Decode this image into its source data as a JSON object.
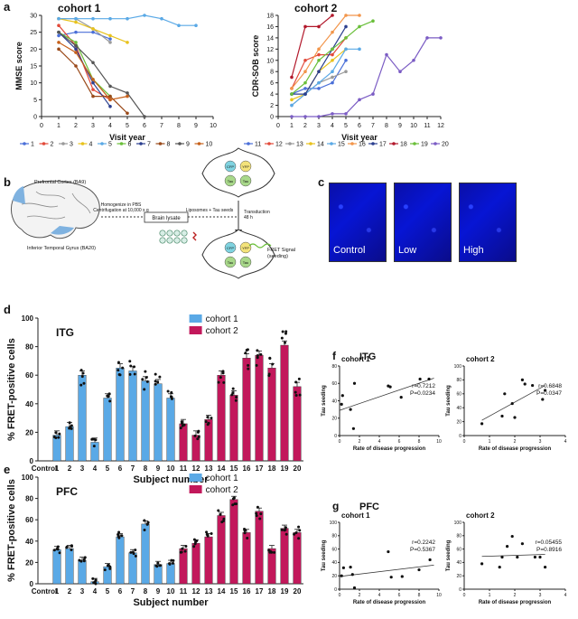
{
  "panel_a": {
    "label": "a",
    "cohort1": {
      "title": "cohort 1",
      "xlabel": "Visit year",
      "ylabel": "MMSE score",
      "xlim": [
        0,
        10
      ],
      "ylim": [
        0,
        30
      ],
      "xticks": [
        0,
        1,
        2,
        3,
        4,
        5,
        6,
        7,
        8,
        9,
        10
      ],
      "yticks": [
        0,
        5,
        10,
        15,
        20,
        25,
        30
      ],
      "series": [
        {
          "name": "1",
          "color": "#4a6fd8",
          "points": [
            [
              1,
              24
            ],
            [
              2,
              25
            ],
            [
              3,
              25
            ],
            [
              4,
              23
            ]
          ]
        },
        {
          "name": "2",
          "color": "#e24a3a",
          "points": [
            [
              1,
              27
            ],
            [
              2,
              21
            ],
            [
              3,
              8
            ],
            [
              4,
              5
            ]
          ]
        },
        {
          "name": "3",
          "color": "#9a9a9a",
          "points": [
            [
              1,
              29
            ],
            [
              2,
              29
            ],
            [
              3,
              26
            ],
            [
              4,
              22
            ]
          ]
        },
        {
          "name": "4",
          "color": "#e8c21c",
          "points": [
            [
              1,
              29
            ],
            [
              2,
              28
            ],
            [
              3,
              26
            ],
            [
              4,
              24
            ],
            [
              5,
              22
            ]
          ]
        },
        {
          "name": "5",
          "color": "#5aa9e6",
          "points": [
            [
              1,
              29
            ],
            [
              2,
              29
            ],
            [
              3,
              29
            ],
            [
              4,
              29
            ],
            [
              5,
              29
            ],
            [
              6,
              30
            ],
            [
              7,
              29
            ],
            [
              8,
              27
            ],
            [
              9,
              27
            ]
          ]
        },
        {
          "name": "6",
          "color": "#6abf3a",
          "points": [
            [
              1,
              25
            ],
            [
              2,
              22
            ],
            [
              3,
              11
            ],
            [
              4,
              6
            ]
          ]
        },
        {
          "name": "7",
          "color": "#2b3f8f",
          "points": [
            [
              1,
              25
            ],
            [
              2,
              20
            ],
            [
              3,
              10
            ],
            [
              4,
              3
            ]
          ]
        },
        {
          "name": "8",
          "color": "#9a4a1a",
          "points": [
            [
              1,
              20
            ],
            [
              2,
              15
            ],
            [
              3,
              6
            ],
            [
              4,
              6
            ],
            [
              5,
              1
            ]
          ]
        },
        {
          "name": "9",
          "color": "#555555",
          "points": [
            [
              1,
              25
            ],
            [
              2,
              21
            ],
            [
              3,
              16
            ],
            [
              4,
              9
            ],
            [
              5,
              7
            ],
            [
              6,
              0
            ]
          ]
        },
        {
          "name": "10",
          "color": "#c6601a",
          "points": [
            [
              1,
              22
            ],
            [
              2,
              19
            ],
            [
              3,
              11
            ],
            [
              4,
              5
            ],
            [
              5,
              6
            ]
          ]
        }
      ]
    },
    "cohort2": {
      "title": "cohort 2",
      "xlabel": "Visit year",
      "ylabel": "CDR-SOB score",
      "xlim": [
        0,
        12
      ],
      "ylim": [
        0,
        18
      ],
      "xticks": [
        0,
        1,
        2,
        3,
        4,
        5,
        6,
        7,
        8,
        9,
        10,
        11,
        12
      ],
      "yticks": [
        0,
        2,
        4,
        6,
        8,
        10,
        12,
        14,
        16,
        18
      ],
      "series": [
        {
          "name": "11",
          "color": "#4a6fd8",
          "points": [
            [
              1,
              4
            ],
            [
              2,
              5
            ],
            [
              3,
              5
            ],
            [
              4,
              6
            ],
            [
              5,
              10
            ]
          ]
        },
        {
          "name": "12",
          "color": "#e24a3a",
          "points": [
            [
              1,
              5
            ],
            [
              2,
              10
            ],
            [
              3,
              11
            ],
            [
              4,
              11
            ],
            [
              5,
              14
            ]
          ]
        },
        {
          "name": "13",
          "color": "#9a9a9a",
          "points": [
            [
              1,
              2
            ],
            [
              2,
              4
            ],
            [
              3,
              6
            ],
            [
              4,
              7
            ],
            [
              5,
              8
            ]
          ]
        },
        {
          "name": "14",
          "color": "#e8c21c",
          "points": [
            [
              1,
              3
            ],
            [
              2,
              4
            ],
            [
              3,
              8
            ],
            [
              4,
              10
            ],
            [
              5,
              12
            ]
          ]
        },
        {
          "name": "15",
          "color": "#5aa9e6",
          "points": [
            [
              1,
              2
            ],
            [
              2,
              4
            ],
            [
              3,
              6
            ],
            [
              4,
              8
            ],
            [
              5,
              12
            ],
            [
              6,
              12
            ]
          ]
        },
        {
          "name": "16",
          "color": "#f2954a",
          "points": [
            [
              1,
              5
            ],
            [
              2,
              8
            ],
            [
              3,
              12
            ],
            [
              4,
              15
            ],
            [
              5,
              18
            ],
            [
              6,
              18
            ]
          ]
        },
        {
          "name": "17",
          "color": "#2b3f8f",
          "points": [
            [
              1,
              4
            ],
            [
              2,
              4
            ],
            [
              3,
              8
            ],
            [
              4,
              12
            ],
            [
              5,
              16
            ]
          ]
        },
        {
          "name": "18",
          "color": "#b2182b",
          "points": [
            [
              1,
              7
            ],
            [
              2,
              16
            ],
            [
              3,
              16
            ],
            [
              4,
              18
            ]
          ]
        },
        {
          "name": "19",
          "color": "#6abf3a",
          "points": [
            [
              1,
              4
            ],
            [
              2,
              6
            ],
            [
              3,
              10
            ],
            [
              4,
              12
            ],
            [
              5,
              14
            ],
            [
              6,
              16
            ],
            [
              7,
              17
            ]
          ]
        },
        {
          "name": "20",
          "color": "#7b5cc4",
          "points": [
            [
              1,
              0
            ],
            [
              2,
              0
            ],
            [
              3,
              0
            ],
            [
              4,
              0.5
            ],
            [
              5,
              0.5
            ],
            [
              6,
              3
            ],
            [
              7,
              4
            ],
            [
              8,
              11
            ],
            [
              9,
              8
            ],
            [
              10,
              10
            ],
            [
              11,
              14
            ],
            [
              12,
              14
            ]
          ]
        }
      ]
    }
  },
  "panel_b": {
    "label": "b",
    "brain_labels": [
      "Prefrontal Cortex (BA9)",
      "Inferior Temporal Gyrus (BA20)"
    ],
    "step1": [
      "Homogenize in PBS",
      "Centrifugation at 10,000 x g"
    ],
    "lysate": "Brain lysate",
    "step2": "Liposomes + Tau seeds",
    "transduction": [
      "Transduction",
      "48 h"
    ],
    "fret": [
      "FRET Signal",
      "(seeding)"
    ],
    "cell_proteins": [
      "CFP",
      "YFP",
      "Tau",
      "Tau"
    ]
  },
  "panel_c": {
    "label": "c",
    "images": [
      "Control",
      "Low",
      "High"
    ]
  },
  "panel_d": {
    "label": "d",
    "region": "ITG",
    "ylabel": "% FRET-positive cells",
    "xlabel": "Subject number",
    "ylim": [
      0,
      100
    ],
    "yticks": [
      0,
      20,
      40,
      60,
      80,
      100
    ],
    "legend": [
      "cohort 1",
      "cohort 2"
    ],
    "categories": [
      "Control",
      "1",
      "2",
      "3",
      "4",
      "5",
      "6",
      "7",
      "8",
      "9",
      "10",
      "11",
      "12",
      "13",
      "14",
      "15",
      "16",
      "17",
      "18",
      "19",
      "20"
    ],
    "values": [
      0,
      18,
      24,
      60,
      13,
      44,
      65,
      63,
      56,
      54,
      44,
      26,
      18,
      29,
      60,
      46,
      72,
      74,
      65,
      81,
      52
    ],
    "cohort": [
      0,
      1,
      1,
      1,
      1,
      1,
      1,
      1,
      1,
      1,
      1,
      2,
      2,
      2,
      2,
      2,
      2,
      2,
      2,
      2,
      2
    ]
  },
  "panel_e": {
    "label": "e",
    "region": "PFC",
    "ylabel": "% FRET-positive cells",
    "xlabel": "Subject number",
    "ylim": [
      0,
      100
    ],
    "yticks": [
      0,
      20,
      40,
      60,
      80,
      100
    ],
    "legend": [
      "cohort 1",
      "cohort 2"
    ],
    "categories": [
      "Control",
      "1",
      "2",
      "3",
      "4",
      "5",
      "6",
      "7",
      "8",
      "9",
      "10",
      "11",
      "12",
      "13",
      "14",
      "15",
      "16",
      "17",
      "18",
      "19",
      "20"
    ],
    "values": [
      0,
      32,
      33,
      22,
      2,
      16,
      44,
      29,
      56,
      18,
      19,
      33,
      38,
      44,
      64,
      79,
      48,
      68,
      33,
      52,
      48
    ],
    "cohort": [
      0,
      1,
      1,
      1,
      1,
      1,
      1,
      1,
      1,
      1,
      1,
      2,
      2,
      2,
      2,
      2,
      2,
      2,
      2,
      2,
      2
    ]
  },
  "panel_f": {
    "label": "f",
    "region": "ITG",
    "plots": [
      {
        "title": "cohort 1",
        "xlabel": "Rate of disease progression",
        "ylabel": "Tau seeding",
        "xlim": [
          0,
          10
        ],
        "ylim": [
          0,
          80
        ],
        "xticks": [
          0,
          2,
          4,
          6,
          8,
          10
        ],
        "yticks": [
          0,
          20,
          40,
          60,
          80
        ],
        "stat": [
          "r=0.7212",
          "P=0.0234"
        ],
        "points": [
          [
            0.2,
            36
          ],
          [
            0.3,
            46
          ],
          [
            1.1,
            30
          ],
          [
            1.4,
            8
          ],
          [
            1.5,
            60
          ],
          [
            4.9,
            57
          ],
          [
            5.1,
            56
          ],
          [
            6.2,
            44
          ],
          [
            8.1,
            65
          ],
          [
            9.0,
            65
          ]
        ],
        "fit": [
          [
            0,
            29
          ],
          [
            9.5,
            66
          ]
        ]
      },
      {
        "title": "cohort 2",
        "xlabel": "Rate of disease progression",
        "ylabel": "Tau seeding",
        "xlim": [
          0,
          4
        ],
        "ylim": [
          0,
          100
        ],
        "xticks": [
          0,
          1,
          2,
          3,
          4
        ],
        "yticks": [
          0,
          20,
          40,
          60,
          80,
          100
        ],
        "stat": [
          "r=0.6848",
          "P=0.0347"
        ],
        "points": [
          [
            0.7,
            17
          ],
          [
            1.5,
            28
          ],
          [
            1.6,
            60
          ],
          [
            1.9,
            46
          ],
          [
            2.0,
            26
          ],
          [
            2.3,
            80
          ],
          [
            2.4,
            74
          ],
          [
            2.7,
            72
          ],
          [
            3.1,
            52
          ],
          [
            3.2,
            65
          ]
        ],
        "fit": [
          [
            0.7,
            22
          ],
          [
            3.2,
            72
          ]
        ]
      }
    ]
  },
  "panel_g": {
    "label": "g",
    "region": "PFC",
    "plots": [
      {
        "title": "cohort 1",
        "xlabel": "Rate of disease progression",
        "ylabel": "Tau seeding",
        "xlim": [
          0,
          10
        ],
        "ylim": [
          0,
          100
        ],
        "xticks": [
          0,
          2,
          4,
          6,
          8,
          10
        ],
        "yticks": [
          0,
          20,
          40,
          60,
          80,
          100
        ],
        "stat": [
          "r=0.2242",
          "P=0.5367"
        ],
        "points": [
          [
            0.2,
            20
          ],
          [
            0.4,
            32
          ],
          [
            1.1,
            33
          ],
          [
            1.3,
            22
          ],
          [
            1.5,
            2
          ],
          [
            4.9,
            56
          ],
          [
            5.2,
            18
          ],
          [
            6.3,
            19
          ],
          [
            8.0,
            29
          ],
          [
            9.1,
            44
          ]
        ],
        "fit": [
          [
            0,
            19
          ],
          [
            9.5,
            36
          ]
        ]
      },
      {
        "title": "cohort 2",
        "xlabel": "Rate of disease progression",
        "ylabel": "Tau seeding",
        "xlim": [
          0,
          4
        ],
        "ylim": [
          0,
          100
        ],
        "xticks": [
          0,
          1,
          2,
          3,
          4
        ],
        "yticks": [
          0,
          20,
          40,
          60,
          80,
          100
        ],
        "stat": [
          "r=0.05455",
          "P=0.8916"
        ],
        "points": [
          [
            0.7,
            38
          ],
          [
            1.4,
            33
          ],
          [
            1.5,
            48
          ],
          [
            1.7,
            64
          ],
          [
            1.9,
            79
          ],
          [
            2.1,
            48
          ],
          [
            2.3,
            68
          ],
          [
            2.8,
            48
          ],
          [
            3.0,
            48
          ],
          [
            3.2,
            33
          ]
        ],
        "fit": [
          [
            0.7,
            49
          ],
          [
            3.2,
            52
          ]
        ]
      }
    ]
  },
  "chart_data": [
    {
      "type": "line",
      "title": "cohort 1",
      "xlabel": "Visit year",
      "ylabel": "MMSE score"
    },
    {
      "type": "line",
      "title": "cohort 2",
      "xlabel": "Visit year",
      "ylabel": "CDR-SOB score"
    },
    {
      "type": "bar",
      "region": "ITG",
      "ylabel": "% FRET-positive cells",
      "xlabel": "Subject number"
    },
    {
      "type": "bar",
      "region": "PFC",
      "ylabel": "% FRET-positive cells",
      "xlabel": "Subject number"
    },
    {
      "type": "scatter",
      "region": "ITG",
      "xlabel": "Rate of disease progression",
      "ylabel": "Tau seeding"
    },
    {
      "type": "scatter",
      "region": "PFC",
      "xlabel": "Rate of disease progression",
      "ylabel": "Tau seeding"
    }
  ],
  "colors": {
    "cohort1": "#5aa9e6",
    "cohort2": "#c2185b",
    "axis": "#222222"
  }
}
